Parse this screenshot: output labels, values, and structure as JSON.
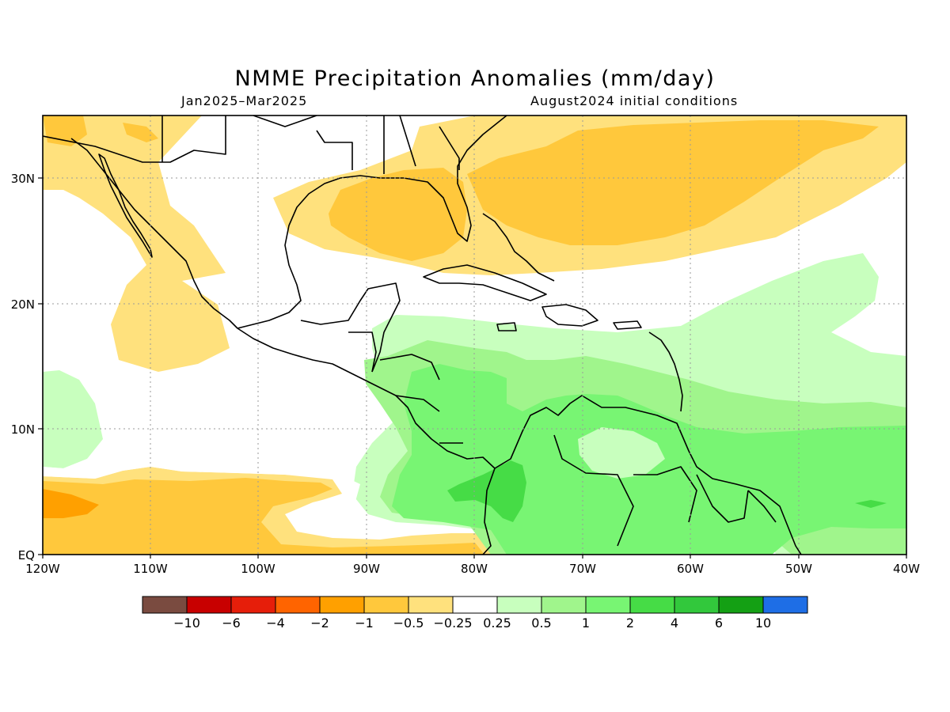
{
  "title": "NMME Precipitation Anomalies (mm/day)",
  "subtitle_left": "Jan2025–Mar2025",
  "subtitle_right": "August2024 initial conditions",
  "map": {
    "lon_range": [
      -120,
      -40
    ],
    "lat_range": [
      0,
      35
    ],
    "x_ticks": [
      "120W",
      "110W",
      "100W",
      "90W",
      "80W",
      "70W",
      "60W",
      "50W",
      "40W"
    ],
    "y_ticks": [
      "EQ",
      "10N",
      "20N",
      "30N"
    ],
    "grid": true,
    "regions": [
      {
        "name": "pacific-dry-band",
        "category": "-0.5",
        "color": "#ffc83c"
      },
      {
        "name": "gulf-atlantic-dry-band",
        "category": "-0.5",
        "color": "#ffc83c"
      },
      {
        "name": "caribbean-wet-region",
        "category": "1",
        "color": "#78f573"
      },
      {
        "name": "colombia-wet-core",
        "category": "2",
        "color": "#46dc46"
      }
    ]
  },
  "colorbar": {
    "colors": [
      "#7a4b40",
      "#c80000",
      "#e61e0a",
      "#ff6400",
      "#ffa000",
      "#ffc83c",
      "#ffe17d",
      "#ffffff",
      "#c8ffbe",
      "#a0f58c",
      "#78f573",
      "#46dc46",
      "#32c83c",
      "#14a014",
      "#1e6ee6"
    ],
    "labels": [
      "−10",
      "−6",
      "−4",
      "−2",
      "−1",
      "−0.5",
      "−0.25",
      "0.25",
      "0.5",
      "1",
      "2",
      "4",
      "6",
      "10"
    ]
  }
}
